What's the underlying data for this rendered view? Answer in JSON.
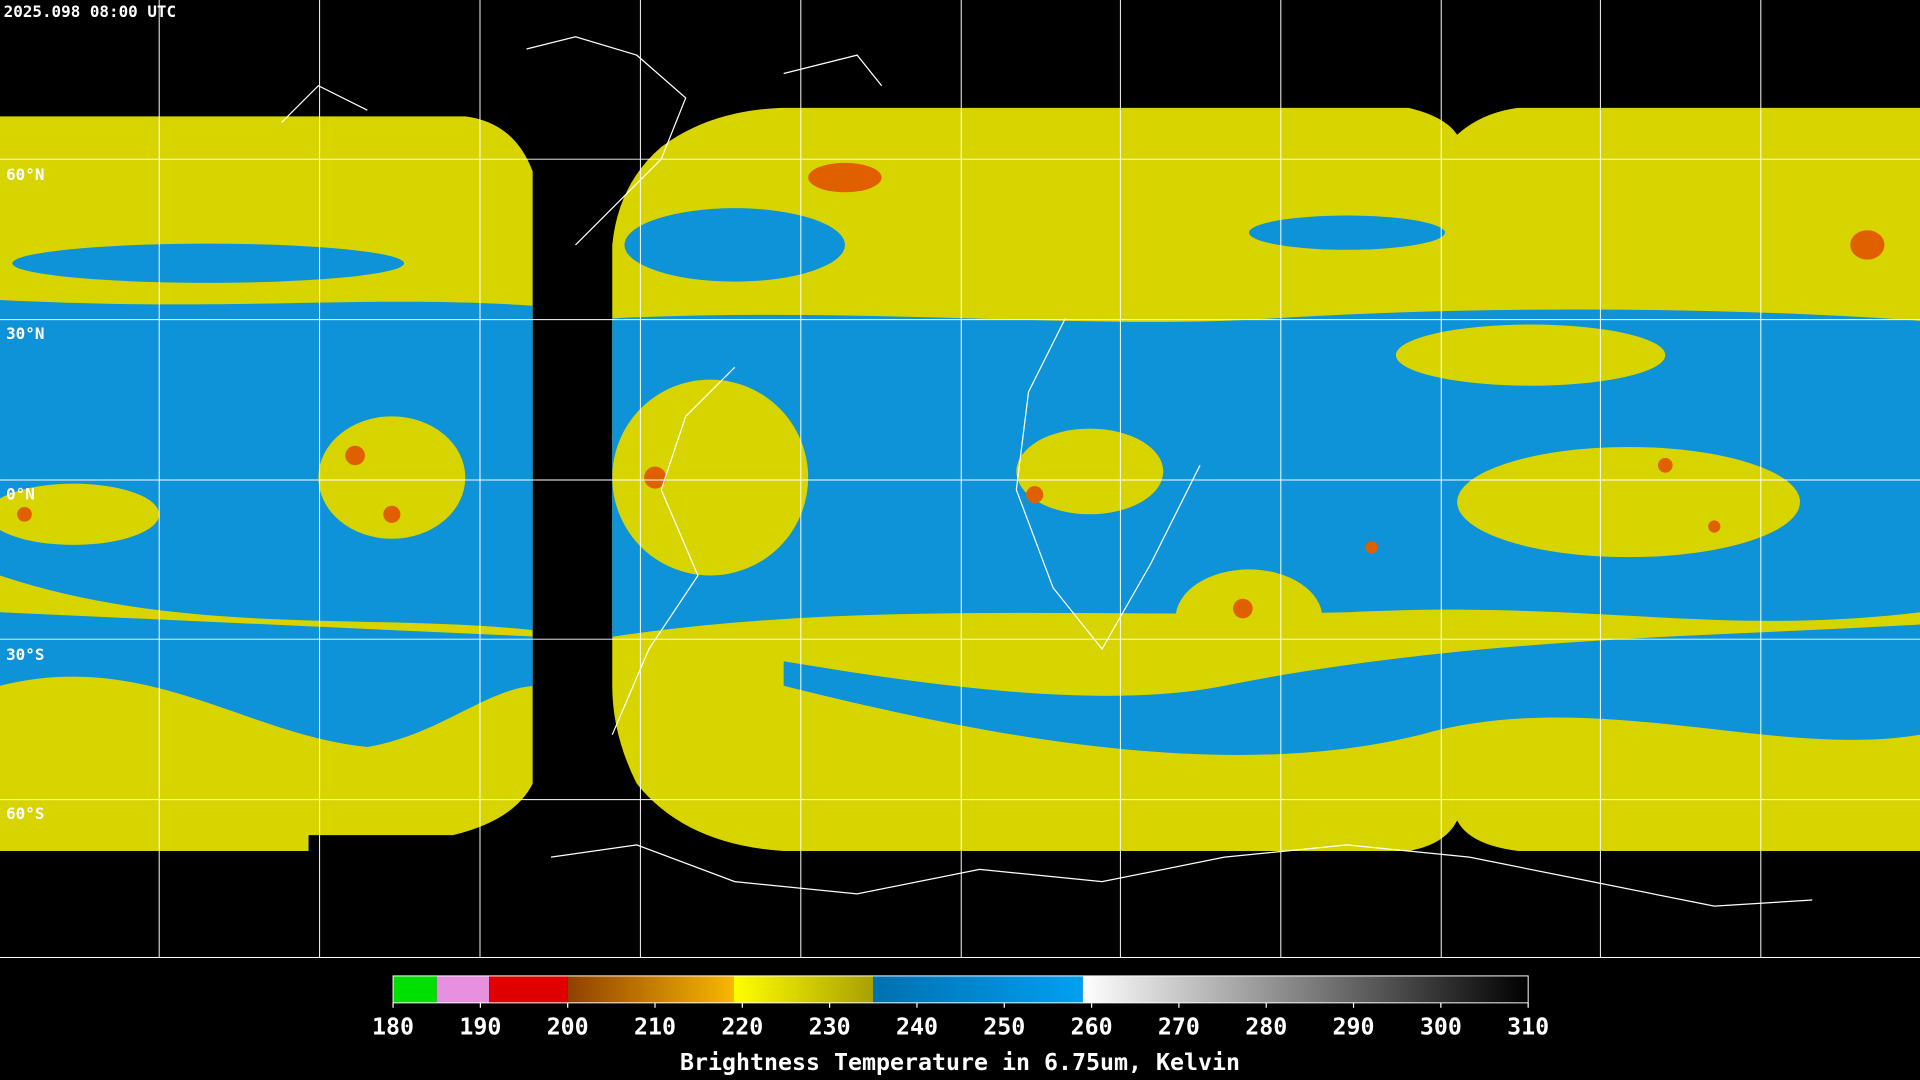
{
  "header": {
    "timestamp": "2025.098 08:00 UTC"
  },
  "map": {
    "latitude_labels": [
      "60°N",
      "30°N",
      "0°N",
      "30°S",
      "60°S"
    ]
  },
  "colorbar": {
    "range": [
      180,
      310
    ],
    "ticks": [
      180,
      190,
      200,
      210,
      220,
      230,
      240,
      250,
      260,
      270,
      280,
      290,
      300,
      310
    ],
    "label": "Brightness Temperature in 6.75um, Kelvin",
    "segments": [
      {
        "from": 180,
        "to": 185,
        "colors": [
          "#00e000",
          "#00e000"
        ]
      },
      {
        "from": 185,
        "to": 191,
        "colors": [
          "#e890e0",
          "#e890e0"
        ]
      },
      {
        "from": 191,
        "to": 200,
        "colors": [
          "#e00000",
          "#e00000"
        ]
      },
      {
        "from": 200,
        "to": 219,
        "colors": [
          "#904000",
          "#f8b800"
        ]
      },
      {
        "from": 219,
        "to": 235,
        "colors": [
          "#ffff00",
          "#a8a000"
        ]
      },
      {
        "from": 235,
        "to": 259,
        "colors": [
          "#0070b0",
          "#00a0f0"
        ]
      },
      {
        "from": 259,
        "to": 310,
        "colors": [
          "#ffffff",
          "#000000"
        ]
      }
    ]
  }
}
